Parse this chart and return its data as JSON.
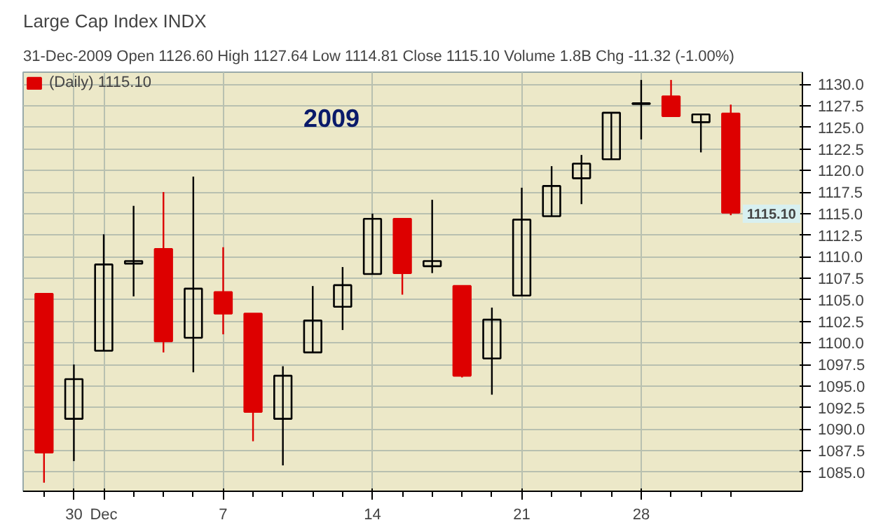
{
  "chart_data": {
    "type": "candlestick",
    "title": "Large Cap Index INDX",
    "subtitle": "31-Dec-2009  Open 1126.60  High 1127.64  Low 1114.81  Close 1115.10  Volume 1.8B  Chg -11.32 (-1.00%)",
    "categories": [
      null,
      "30",
      "Dec",
      null,
      null,
      null,
      "7",
      null,
      null,
      null,
      null,
      "14",
      null,
      null,
      null,
      null,
      "21",
      null,
      null,
      null,
      "28",
      null,
      null,
      null
    ],
    "series": [
      {
        "name": "(Daily) 1115.10",
        "ohlc": [
          [
            1105.7,
            1105.7,
            1083.8,
            1087.3
          ],
          [
            1091.2,
            1097.5,
            1086.3,
            1095.8
          ],
          [
            1099.1,
            1112.6,
            1099.1,
            1109.1
          ],
          [
            1109.2,
            1115.9,
            1105.4,
            1109.5
          ],
          [
            1110.9,
            1117.5,
            1098.9,
            1100.2
          ],
          [
            1100.6,
            1119.3,
            1096.6,
            1106.3
          ],
          [
            1105.9,
            1111.1,
            1101.0,
            1103.4
          ],
          [
            1103.4,
            1103.4,
            1088.6,
            1092.0
          ],
          [
            1091.2,
            1097.3,
            1085.8,
            1096.2
          ],
          [
            1098.9,
            1106.6,
            1098.9,
            1102.6
          ],
          [
            1104.2,
            1108.8,
            1101.5,
            1106.7
          ],
          [
            1108.0,
            1115.0,
            1108.0,
            1114.4
          ],
          [
            1114.4,
            1114.4,
            1105.6,
            1108.1
          ],
          [
            1108.9,
            1116.6,
            1108.1,
            1109.5
          ],
          [
            1106.6,
            1106.6,
            1096.0,
            1096.2
          ],
          [
            1098.2,
            1104.1,
            1094.0,
            1102.7
          ],
          [
            1105.5,
            1118.0,
            1105.5,
            1114.3
          ],
          [
            1114.7,
            1120.5,
            1114.7,
            1118.2
          ],
          [
            1119.1,
            1121.8,
            1116.1,
            1120.8
          ],
          [
            1121.3,
            1126.7,
            1121.3,
            1126.7
          ],
          [
            1127.7,
            1130.5,
            1123.6,
            1127.8
          ],
          [
            1128.6,
            1130.5,
            1126.3,
            1126.3
          ],
          [
            1125.6,
            1126.5,
            1122.1,
            1126.5
          ],
          [
            1126.6,
            1127.64,
            1114.81,
            1115.1
          ]
        ],
        "colors": [
          "#dd0000",
          "#000000",
          "#000000",
          "#000000",
          "#dd0000",
          "#000000",
          "#dd0000",
          "#dd0000",
          "#000000",
          "#000000",
          "#000000",
          "#000000",
          "#dd0000",
          "#000000",
          "#dd0000",
          "#000000",
          "#000000",
          "#000000",
          "#000000",
          "#000000",
          "#000000",
          "#dd0000",
          "#000000",
          "#dd0000"
        ]
      }
    ],
    "ylim": [
      1082.8,
      1131.4
    ],
    "yticks": [
      {
        "value": 1085,
        "label": "1085.0"
      },
      {
        "value": 1087.5,
        "label": "1087.5"
      },
      {
        "value": 1090,
        "label": "1090.0"
      },
      {
        "value": 1092.5,
        "label": "1092.5"
      },
      {
        "value": 1095,
        "label": "1095.0"
      },
      {
        "value": 1097.5,
        "label": "1097.5"
      },
      {
        "value": 1100,
        "label": "1100.0"
      },
      {
        "value": 1102.5,
        "label": "1102.5"
      },
      {
        "value": 1105,
        "label": "1105.0"
      },
      {
        "value": 1107.5,
        "label": "1107.5"
      },
      {
        "value": 1110,
        "label": "1110.0"
      },
      {
        "value": 1112.5,
        "label": "1112.5"
      },
      {
        "value": 1115,
        "label": "1115.0"
      },
      {
        "value": 1117.5,
        "label": "1117.5"
      },
      {
        "value": 1120,
        "label": "1120.0"
      },
      {
        "value": 1122.5,
        "label": "1122.5"
      },
      {
        "value": 1125,
        "label": "1125.0"
      },
      {
        "value": 1127.5,
        "label": "1127.5"
      },
      {
        "value": 1130,
        "label": "1130.0"
      }
    ],
    "annotations": [
      "2009",
      "1115.10"
    ],
    "grid": true,
    "legend": "top left"
  }
}
